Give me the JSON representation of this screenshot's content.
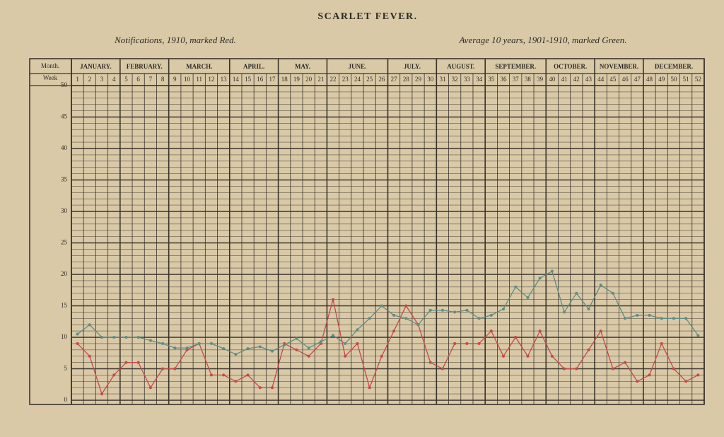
{
  "chart_data": {
    "type": "line",
    "title": "SCARLET FEVER.",
    "month_header": "Month.",
    "week_header": "Week",
    "months": [
      "JANUARY.",
      null,
      null,
      null,
      "FEBRUARY.",
      null,
      null,
      null,
      "MARCH.",
      null,
      null,
      null,
      null,
      "APRIL.",
      null,
      null,
      null,
      "MAY.",
      null,
      null,
      null,
      "JUNE.",
      null,
      null,
      null,
      null,
      "JULY.",
      null,
      null,
      null,
      "AUGUST.",
      null,
      null,
      null,
      "SEPTEMBER.",
      null,
      null,
      null,
      null,
      "OCTOBER.",
      null,
      null,
      null,
      "NOVEMBER.",
      null,
      null,
      null,
      "DECEMBER.",
      null,
      null,
      null,
      null
    ],
    "categories": [
      "1",
      "2",
      "3",
      "4",
      "5",
      "6",
      "7",
      "8",
      "9",
      "10",
      "11",
      "12",
      "13",
      "14",
      "15",
      "16",
      "17",
      "18",
      "19",
      "20",
      "21",
      "22",
      "23",
      "24",
      "25",
      "26",
      "27",
      "28",
      "29",
      "30",
      "31",
      "32",
      "33",
      "34",
      "35",
      "36",
      "37",
      "38",
      "39",
      "40",
      "41",
      "42",
      "43",
      "44",
      "45",
      "46",
      "47",
      "48",
      "49",
      "50",
      "51",
      "52"
    ],
    "series": [
      {
        "name": "Notifications, 1910, marked Red.",
        "color": "#c4484a",
        "values": [
          9,
          7,
          1,
          4,
          6,
          6,
          2,
          5,
          5,
          8,
          9,
          4,
          4,
          3,
          4,
          2,
          2,
          9,
          8,
          7,
          9,
          16,
          7,
          9,
          2,
          7,
          11,
          15,
          12,
          6,
          5,
          9,
          9,
          9,
          11,
          7,
          10,
          7,
          11,
          7,
          5,
          5,
          8,
          11,
          5,
          6,
          3,
          4,
          9,
          5,
          3,
          4
        ]
      },
      {
        "name": "Average 10 years, 1901-1910, marked Green.",
        "color": "#5e8c84",
        "values": [
          10.5,
          12,
          10,
          10,
          10,
          10,
          9.5,
          9,
          8.3,
          8.3,
          9,
          9,
          8.2,
          7.3,
          8.2,
          8.5,
          7.8,
          8.8,
          9.8,
          8.3,
          9.3,
          10.3,
          9,
          11.2,
          13,
          15,
          13.5,
          13,
          12,
          14.3,
          14.3,
          14,
          14.3,
          13,
          13.5,
          14.5,
          18,
          16.3,
          19.4,
          20.5,
          14,
          17,
          14.5,
          18.3,
          17,
          13,
          13.5,
          13.5,
          13,
          13,
          13,
          10.3
        ]
      }
    ],
    "ylim": [
      0,
      50
    ],
    "yticks": [
      0,
      5,
      10,
      15,
      20,
      25,
      30,
      35,
      40,
      45,
      50
    ],
    "grid": true
  }
}
